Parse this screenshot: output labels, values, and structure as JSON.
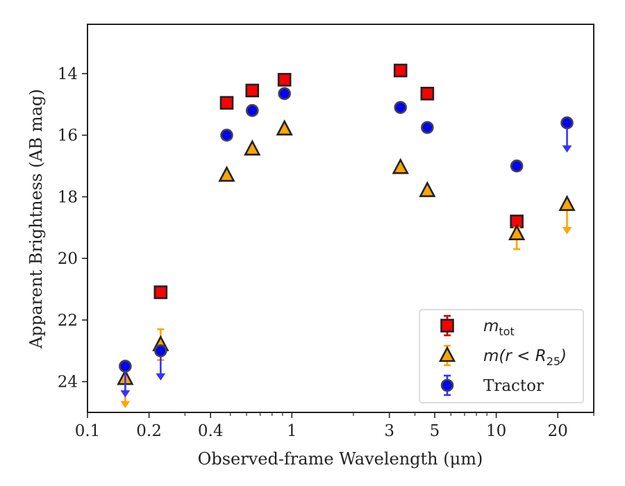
{
  "chart_data": {
    "type": "scatter",
    "xlabel": "Observed-frame Wavelength (μm)",
    "ylabel": "Apparent Brightness (AB mag)",
    "xscale": "log",
    "xlim": [
      0.1,
      30
    ],
    "ylim": [
      25,
      12.4
    ],
    "y_inverted": true,
    "grid": false,
    "legend_position": "lower-right",
    "x_ticks": [
      {
        "value": 0.1,
        "label": "0.1"
      },
      {
        "value": 0.2,
        "label": "0.2"
      },
      {
        "value": 0.4,
        "label": "0.4"
      },
      {
        "value": 1,
        "label": "1"
      },
      {
        "value": 3,
        "label": "3"
      },
      {
        "value": 5,
        "label": "5"
      },
      {
        "value": 10,
        "label": "10"
      },
      {
        "value": 20,
        "label": "20"
      }
    ],
    "y_ticks": [
      {
        "value": 14,
        "label": "14"
      },
      {
        "value": 16,
        "label": "16"
      },
      {
        "value": 18,
        "label": "18"
      },
      {
        "value": 20,
        "label": "20"
      },
      {
        "value": 22,
        "label": "22"
      },
      {
        "value": 24,
        "label": "24"
      }
    ],
    "series": [
      {
        "name": "m_tot",
        "legend_label": "m",
        "legend_subscript": "tot",
        "marker": "square",
        "color": "#ff0000",
        "edge_color": "#222222",
        "error_color": "#cc0000",
        "points": [
          {
            "x": 0.228,
            "y": 21.1
          },
          {
            "x": 0.48,
            "y": 14.95
          },
          {
            "x": 0.64,
            "y": 14.55
          },
          {
            "x": 0.92,
            "y": 14.2
          },
          {
            "x": 3.4,
            "y": 13.9
          },
          {
            "x": 4.6,
            "y": 14.65
          },
          {
            "x": 12.6,
            "y": 18.8
          }
        ]
      },
      {
        "name": "m(r<R25)",
        "legend_label": "m(r < R",
        "legend_subscript": "25",
        "legend_suffix": ")",
        "marker": "triangle",
        "color": "#ffa500",
        "edge_color": "#222222",
        "error_color": "#ffa500",
        "points": [
          {
            "x": 0.153,
            "y": 23.9,
            "upper_limit": true,
            "limit_to": 24.8
          },
          {
            "x": 0.228,
            "y": 22.8,
            "err_low": 22.3,
            "err_high": 23.3
          },
          {
            "x": 0.48,
            "y": 17.3
          },
          {
            "x": 0.64,
            "y": 16.45
          },
          {
            "x": 0.92,
            "y": 15.8
          },
          {
            "x": 3.4,
            "y": 17.05
          },
          {
            "x": 4.6,
            "y": 17.8
          },
          {
            "x": 12.6,
            "y": 19.2,
            "err_low": 19.0,
            "err_high": 19.7
          },
          {
            "x": 22.2,
            "y": 18.25,
            "upper_limit": true,
            "limit_to": 19.15
          }
        ]
      },
      {
        "name": "Tractor",
        "legend_label": "Tractor",
        "marker": "circle",
        "color": "#0000ff",
        "edge_color": "#444444",
        "error_color": "#3333ff",
        "points": [
          {
            "x": 0.153,
            "y": 23.5,
            "upper_limit": true,
            "limit_to": 24.45
          },
          {
            "x": 0.228,
            "y": 23.0,
            "upper_limit": true,
            "limit_to": 23.9
          },
          {
            "x": 0.48,
            "y": 16.0
          },
          {
            "x": 0.64,
            "y": 15.2
          },
          {
            "x": 0.92,
            "y": 14.65
          },
          {
            "x": 3.4,
            "y": 15.1
          },
          {
            "x": 4.6,
            "y": 15.75
          },
          {
            "x": 12.6,
            "y": 17.0
          },
          {
            "x": 22.2,
            "y": 15.6,
            "upper_limit": true,
            "limit_to": 16.5
          }
        ]
      }
    ]
  }
}
